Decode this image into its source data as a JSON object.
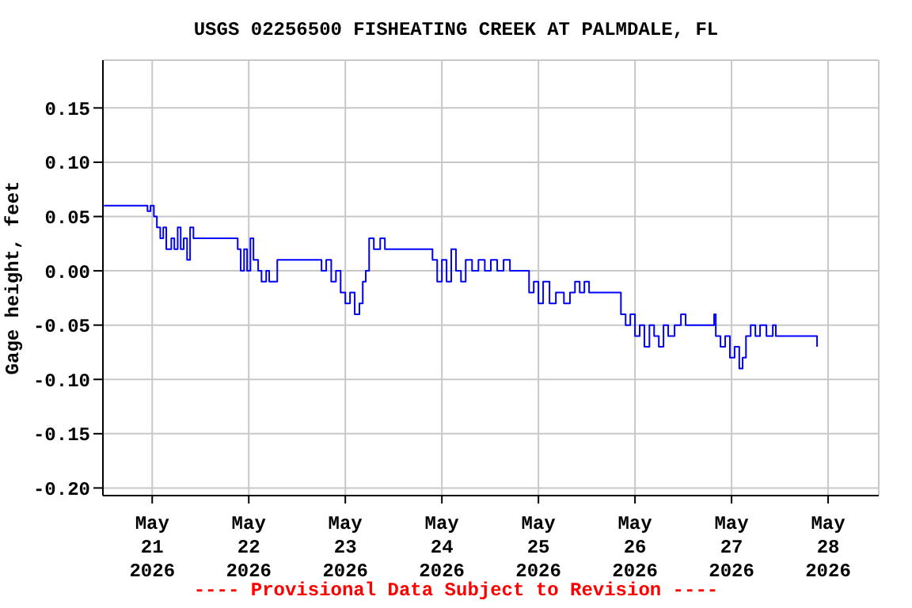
{
  "chart_data": {
    "type": "step",
    "title": "USGS 02256500 FISHEATING CREEK AT PALMDALE, FL",
    "ylabel": "Gage height, feet",
    "annotations": [
      "---- Provisional Data Subject to Revision ----"
    ],
    "x": [
      "2026-05-20T12:00",
      "2026-05-20T22:25",
      "2026-05-20T22:50",
      "2026-05-20T23:35",
      "2026-05-21T00:25",
      "2026-05-21T01:10",
      "2026-05-21T02:00",
      "2026-05-21T02:45",
      "2026-05-21T03:30",
      "2026-05-21T04:45",
      "2026-05-21T05:30",
      "2026-05-21T06:20",
      "2026-05-21T07:05",
      "2026-05-21T07:50",
      "2026-05-21T08:40",
      "2026-05-21T09:25",
      "2026-05-21T10:15",
      "2026-05-21T11:25",
      "2026-05-21T20:30",
      "2026-05-21T21:15",
      "2026-05-21T22:00",
      "2026-05-21T22:50",
      "2026-05-21T23:35",
      "2026-05-22T00:25",
      "2026-05-22T01:10",
      "2026-05-22T02:20",
      "2026-05-22T03:10",
      "2026-05-22T04:20",
      "2026-05-22T05:05",
      "2026-05-22T07:05",
      "2026-05-22T16:55",
      "2026-05-22T18:05",
      "2026-05-22T19:15",
      "2026-05-22T20:30",
      "2026-05-22T21:40",
      "2026-05-22T22:50",
      "2026-05-23T00:00",
      "2026-05-23T01:10",
      "2026-05-23T02:20",
      "2026-05-23T03:30",
      "2026-05-23T04:20",
      "2026-05-23T05:05",
      "2026-05-23T05:55",
      "2026-05-23T07:05",
      "2026-05-23T08:40",
      "2026-05-23T09:50",
      "2026-05-23T20:30",
      "2026-05-23T21:40",
      "2026-05-23T22:50",
      "2026-05-24T00:00",
      "2026-05-24T01:10",
      "2026-05-24T02:20",
      "2026-05-24T03:30",
      "2026-05-24T04:45",
      "2026-05-24T05:55",
      "2026-05-24T07:30",
      "2026-05-24T09:05",
      "2026-05-24T10:40",
      "2026-05-24T12:10",
      "2026-05-24T13:45",
      "2026-05-24T15:20",
      "2026-05-24T16:55",
      "2026-05-24T20:50",
      "2026-05-24T21:40",
      "2026-05-24T22:50",
      "2026-05-25T00:00",
      "2026-05-25T01:10",
      "2026-05-25T02:45",
      "2026-05-25T04:20",
      "2026-05-25T06:20",
      "2026-05-25T07:50",
      "2026-05-25T09:05",
      "2026-05-25T10:15",
      "2026-05-25T11:25",
      "2026-05-25T12:35",
      "2026-05-25T19:40",
      "2026-05-25T20:30",
      "2026-05-25T21:40",
      "2026-05-25T22:50",
      "2026-05-26T00:00",
      "2026-05-26T01:10",
      "2026-05-26T02:20",
      "2026-05-26T03:35",
      "2026-05-26T04:45",
      "2026-05-26T05:55",
      "2026-05-26T07:05",
      "2026-05-26T08:15",
      "2026-05-26T09:50",
      "2026-05-26T11:25",
      "2026-05-26T12:35",
      "2026-05-26T19:15",
      "2026-05-26T19:40",
      "2026-05-26T20:05",
      "2026-05-26T21:15",
      "2026-05-26T22:25",
      "2026-05-26T23:35",
      "2026-05-27T00:45",
      "2026-05-27T01:55",
      "2026-05-27T02:45",
      "2026-05-27T03:35",
      "2026-05-27T04:45",
      "2026-05-27T05:55",
      "2026-05-27T07:05",
      "2026-05-27T08:40",
      "2026-05-27T10:15",
      "2026-05-27T11:00",
      "2026-05-27T20:50",
      "2026-05-27T21:15"
    ],
    "series": [
      {
        "color": "#0000ff",
        "values": [
          0.06,
          0.06,
          0.055,
          0.06,
          0.05,
          0.04,
          0.03,
          0.04,
          0.02,
          0.03,
          0.02,
          0.04,
          0.02,
          0.03,
          0.01,
          0.04,
          0.03,
          0.03,
          0.03,
          0.02,
          0.0,
          0.02,
          0.0,
          0.03,
          0.01,
          0.0,
          -0.01,
          0.0,
          -0.01,
          0.01,
          0.01,
          0.0,
          0.01,
          -0.01,
          0.0,
          -0.02,
          -0.03,
          -0.02,
          -0.04,
          -0.03,
          -0.01,
          0.0,
          0.03,
          0.02,
          0.03,
          0.02,
          0.02,
          0.01,
          -0.01,
          0.01,
          -0.01,
          0.02,
          0.0,
          -0.01,
          0.01,
          0.0,
          0.01,
          0.0,
          0.01,
          0.0,
          0.01,
          0.0,
          0.0,
          -0.02,
          -0.01,
          -0.03,
          -0.01,
          -0.03,
          -0.02,
          -0.03,
          -0.02,
          -0.01,
          -0.02,
          -0.01,
          -0.02,
          -0.02,
          -0.04,
          -0.05,
          -0.04,
          -0.06,
          -0.05,
          -0.07,
          -0.05,
          -0.06,
          -0.07,
          -0.05,
          -0.06,
          -0.05,
          -0.04,
          -0.05,
          -0.05,
          -0.04,
          -0.06,
          -0.07,
          -0.06,
          -0.08,
          -0.07,
          -0.09,
          -0.08,
          -0.06,
          -0.05,
          -0.06,
          -0.05,
          -0.06,
          -0.05,
          -0.06,
          -0.06,
          -0.07
        ]
      }
    ],
    "xlim": [
      "2026-05-20T11:45",
      "2026-05-28T12:35"
    ],
    "xticks": [
      {
        "value": "2026-05-21",
        "label": "May 21 2026"
      },
      {
        "value": "2026-05-22",
        "label": "May 22 2026"
      },
      {
        "value": "2026-05-23",
        "label": "May 23 2026"
      },
      {
        "value": "2026-05-24",
        "label": "May 24 2026"
      },
      {
        "value": "2026-05-25",
        "label": "May 25 2026"
      },
      {
        "value": "2026-05-26",
        "label": "May 26 2026"
      },
      {
        "value": "2026-05-27",
        "label": "May 27 2026"
      },
      {
        "value": "2026-05-28",
        "label": "May 28 2026"
      }
    ],
    "ylim": [
      -0.207,
      0.194
    ],
    "yticks": [
      {
        "value": -0.2,
        "label": "-0.20"
      },
      -0.15,
      {
        "value": -0.1,
        "label": "-0.10"
      },
      -0.05,
      {
        "value": 0,
        "label": "0.00"
      },
      0.05,
      {
        "value": 0.1,
        "label": "0.10"
      },
      0.15
    ],
    "grid": true,
    "legend": false,
    "marker": "none",
    "line_style": "solid"
  }
}
